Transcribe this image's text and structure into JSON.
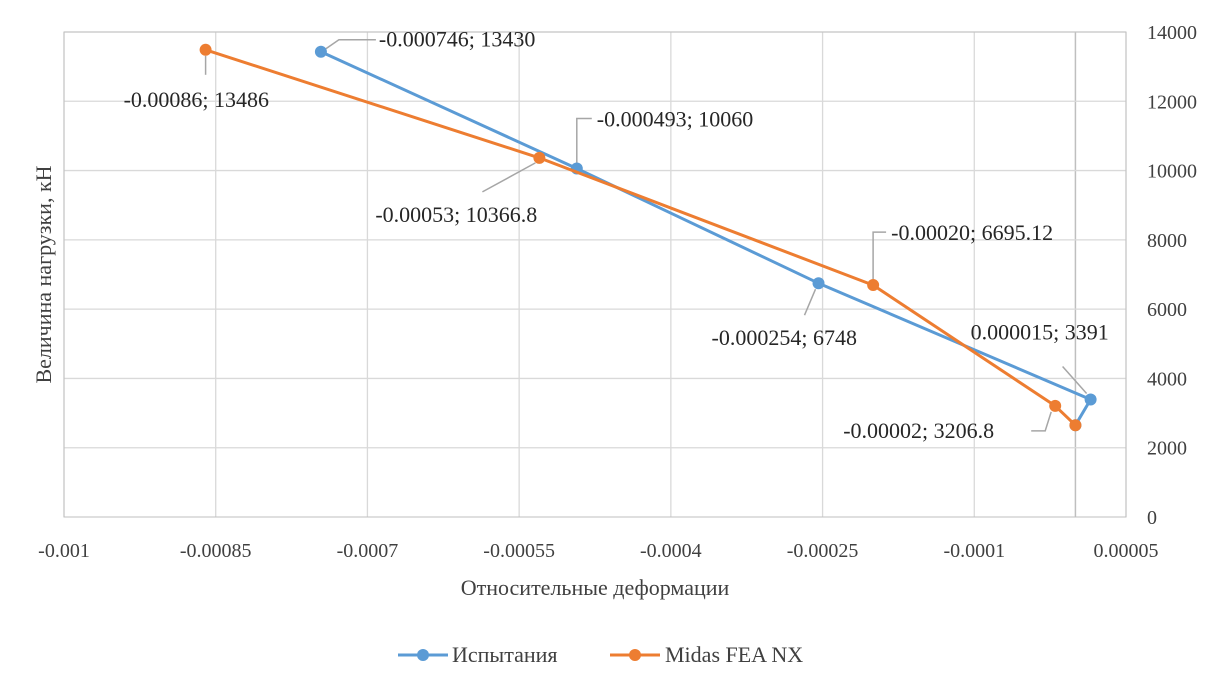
{
  "chart_data": {
    "type": "scatter",
    "title": "",
    "xlabel": "Относительные деформации",
    "ylabel": "Величина нагрузки, кН",
    "xlim": [
      -0.001,
      5e-05
    ],
    "ylim": [
      0,
      14000
    ],
    "x_ticks": [
      {
        "value": -0.001,
        "label": "-0.001"
      },
      {
        "value": -0.00085,
        "label": "-0.00085"
      },
      {
        "value": -0.0007,
        "label": "-0.0007"
      },
      {
        "value": -0.00055,
        "label": "-0.00055"
      },
      {
        "value": -0.0004,
        "label": "-0.0004"
      },
      {
        "value": -0.00025,
        "label": "-0.00025"
      },
      {
        "value": -0.0001,
        "label": "-0.0001"
      },
      {
        "value": 5e-05,
        "label": "0.00005"
      }
    ],
    "y_ticks": [
      {
        "value": 0,
        "label": "0"
      },
      {
        "value": 2000,
        "label": "2000"
      },
      {
        "value": 4000,
        "label": "4000"
      },
      {
        "value": 6000,
        "label": "6000"
      },
      {
        "value": 8000,
        "label": "8000"
      },
      {
        "value": 10000,
        "label": "10000"
      },
      {
        "value": 12000,
        "label": "12000"
      },
      {
        "value": 14000,
        "label": "14000"
      }
    ],
    "y_axis_side": "right",
    "grid": true,
    "legend_position": "bottom",
    "series": [
      {
        "name": "Испытания",
        "color": "#5B9BD5",
        "points": [
          {
            "x": -0.000746,
            "y": 13430,
            "label": "-0.000746; 13430"
          },
          {
            "x": -0.000493,
            "y": 10060,
            "label": "-0.000493; 10060"
          },
          {
            "x": -0.000254,
            "y": 6748,
            "label": "-0.000254; 6748"
          },
          {
            "x": 1.5e-05,
            "y": 3391,
            "label": "0.000015; 3391"
          },
          {
            "x": 0.0,
            "y": 2650,
            "label": ""
          }
        ]
      },
      {
        "name": "Midas FEA NX",
        "color": "#ED7D31",
        "points": [
          {
            "x": -0.00086,
            "y": 13486,
            "label": "-0.00086; 13486"
          },
          {
            "x": -0.00053,
            "y": 10366.8,
            "label": "-0.00053; 10366.8"
          },
          {
            "x": -0.0002,
            "y": 6695.12,
            "label": "-0.00020; 6695.12"
          },
          {
            "x": -2e-05,
            "y": 3206.8,
            "label": "-0.00002; 3206.8"
          },
          {
            "x": 0.0,
            "y": 2650,
            "label": ""
          }
        ]
      }
    ]
  }
}
